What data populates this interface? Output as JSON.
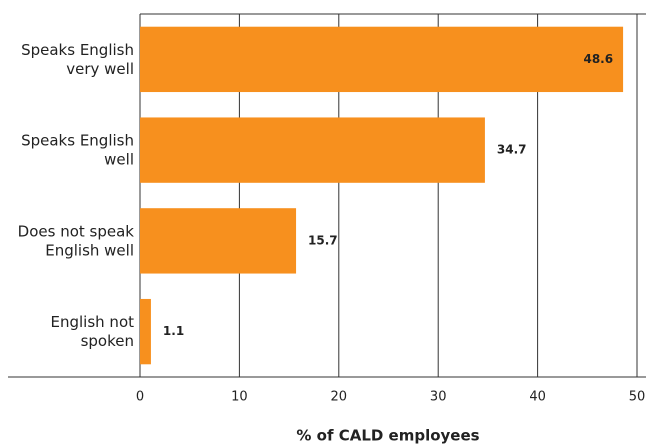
{
  "chart_data": {
    "type": "barh",
    "xlabel": "% of CALD employees",
    "categories": [
      "Speaks English\nvery well",
      "Speaks English\nwell",
      "Does not speak\nEnglish well",
      "English not\nspoken"
    ],
    "values": [
      48.6,
      34.7,
      15.7,
      1.1
    ],
    "color": "#f7901e",
    "xlim": [
      0,
      50
    ],
    "xticks": [
      0,
      10,
      20,
      30,
      40,
      50
    ],
    "grid": true
  }
}
